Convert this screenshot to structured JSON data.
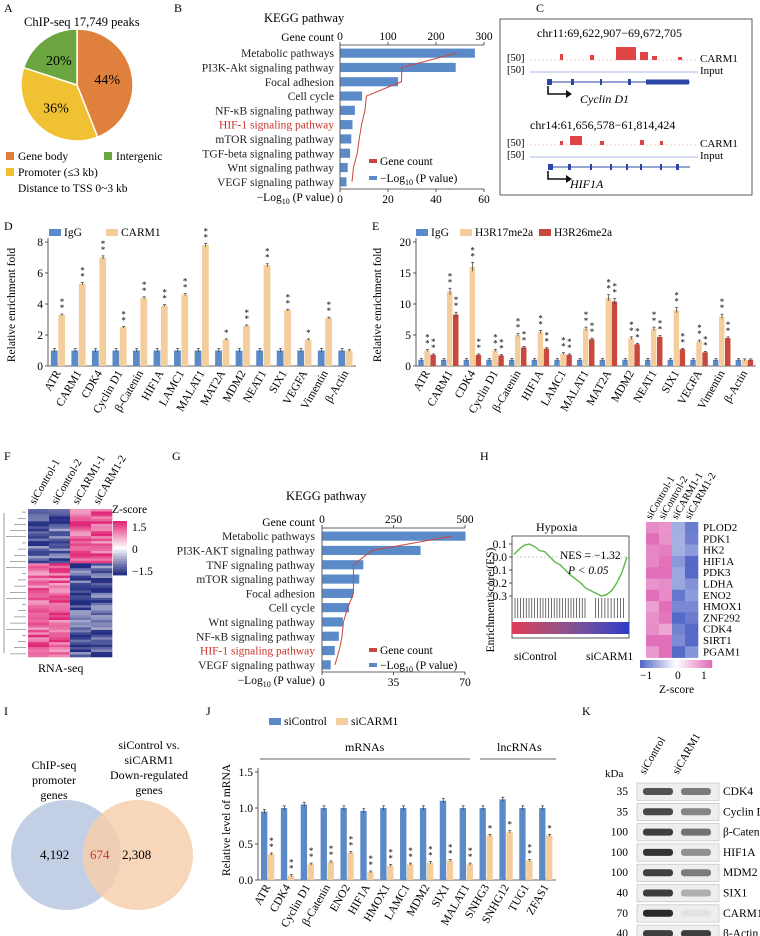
{
  "colors": {
    "body": "#e0803d",
    "intergenic": "#6ba53f",
    "promoter": "#f0c233",
    "blue": "#5b8ac8",
    "peach": "#f4cd9c",
    "red": "#c9483d",
    "title_red": "#c9352c",
    "venn_blue": "#c3cfe5",
    "venn_peach": "#f6cfae"
  },
  "panels": {
    "A": "A",
    "B": "B",
    "C": "C",
    "D": "D",
    "E": "E",
    "F": "F",
    "G": "G",
    "H": "H",
    "I": "I",
    "J": "J",
    "K": "K"
  },
  "panel_a": {
    "title": "ChIP-seq 17,749 peaks",
    "slices": [
      {
        "label": "44%",
        "value": 44,
        "color": "#e0803d"
      },
      {
        "label": "36%",
        "value": 36,
        "color": "#f0c233"
      },
      {
        "label": "20%",
        "value": 20,
        "color": "#6ba53f"
      }
    ],
    "legend": [
      "Gene body",
      "Intergenic",
      "Promoter (≤3 kb)",
      "Distance to TSS 0~3 kb"
    ]
  },
  "panel_b": {
    "title": "KEGG pathway",
    "top_axis_label": "Gene count",
    "top_ticks": [
      "0",
      "100",
      "200",
      "300"
    ],
    "bottom_ticks": [
      "0",
      "20",
      "40",
      "60"
    ],
    "bottom_axis_label": "−Log",
    "bottom_axis_sub": "10",
    "bottom_axis_rest": " (P value)",
    "legend_gene": "Gene count",
    "legend_p": "−Log",
    "legend_p_sub": "10",
    "legend_p_rest": " (P value)"
  },
  "panel_c": {
    "loc1": "chr11:69,622,907−69,672,705",
    "loc2": "chr14:61,656,578−61,814,424",
    "scale": "[50]",
    "track1": "CARM1",
    "track2": "Input",
    "gene1": "Cyclin D1",
    "gene2": "HIF1A"
  },
  "panel_d": {
    "legend": [
      "IgG",
      "CARM1"
    ],
    "ylabel": "Relative enrichment fold",
    "yticks": [
      "0",
      "2",
      "4",
      "6",
      "8"
    ],
    "stars": [
      "**",
      "**",
      "**",
      "**",
      "**",
      "**",
      "**",
      "**",
      "*",
      "**",
      "**",
      "**",
      "*",
      "**",
      ""
    ]
  },
  "panel_e": {
    "legend": [
      "IgG",
      "H3R17me2a",
      "H3R26me2a"
    ],
    "ylabel": "Relative enrichment fold",
    "yticks": [
      "0",
      "5",
      "10",
      "15",
      "20"
    ]
  },
  "panel_f": {
    "cols": [
      "siControl-1",
      "siControl-2",
      "siCARM1-1",
      "siCARM1-2"
    ],
    "zlabel": "Z-score",
    "zticks": [
      "1.5",
      "0",
      "−1.5"
    ],
    "caption": "RNA-seq"
  },
  "panel_g": {
    "title": "KEGG pathway",
    "top_axis_label": "Gene count",
    "top_ticks": [
      "0",
      "250",
      "500"
    ],
    "bottom_ticks": [
      "0",
      "35",
      "70"
    ],
    "bottom_axis_label": "−Log",
    "bottom_axis_sub": "10",
    "bottom_axis_rest": " (P value)",
    "legend_gene": "Gene count",
    "legend_p": "−Log",
    "legend_p_sub": "10",
    "legend_p_rest": " (P value)"
  },
  "panel_h": {
    "title": "Hypoxia",
    "nes": "NES = −1.32",
    "pval": "P < 0.05",
    "ylabel": "Enrichment score (ES)",
    "yticks": [
      "0.1",
      "0.0",
      "−0.1",
      "−0.2",
      "−0.3"
    ],
    "xleft": "siControl",
    "xright": "siCARM1",
    "cols": [
      "siControl-1",
      "siControl-2",
      "siCARM1-1",
      "siCARM1-2"
    ],
    "genes": [
      "PLOD2",
      "PDK1",
      "HK2",
      "HIF1A",
      "PDK3",
      "LDHA",
      "ENO2",
      "HMOX1",
      "ZNF292",
      "CDK4",
      "SIRT1",
      "PGAM1"
    ],
    "zticks": [
      "−1",
      "0",
      "1"
    ],
    "zlabel": "Z-score"
  },
  "panel_i": {
    "left_title": [
      "ChIP-seq",
      "promoter",
      "genes"
    ],
    "right_title": [
      "siControl vs.",
      "siCARM1",
      "Down-regulated",
      "genes"
    ],
    "left_n": "4,192",
    "overlap_n": "674",
    "right_n": "2,308"
  },
  "panel_j": {
    "legend": [
      "siControl",
      "siCARM1"
    ],
    "ylabel": "Relative level of mRNA",
    "yticks": [
      "0.0",
      "0.5",
      "1.0",
      "1.5"
    ],
    "group1": "mRNAs",
    "group2": "lncRNAs"
  },
  "panel_k": {
    "cols": [
      "siControl",
      "siCARM1"
    ],
    "unit": "kDa",
    "rows": [
      {
        "kda": "35",
        "name": "CDK4"
      },
      {
        "kda": "35",
        "name": "Cyclin  D1"
      },
      {
        "kda": "100",
        "name": "β-Catenin"
      },
      {
        "kda": "100",
        "name": "HIF1A"
      },
      {
        "kda": "100",
        "name": "MDM2"
      },
      {
        "kda": "40",
        "name": "SIX1"
      },
      {
        "kda": "70",
        "name": "CARM1"
      },
      {
        "kda": "40",
        "name": "β-Actin"
      }
    ]
  },
  "chart_data": [
    {
      "type": "pie",
      "title": "ChIP-seq 17,749 peaks",
      "categories": [
        "Gene body",
        "Promoter (≤3 kb)",
        "Intergenic"
      ],
      "values": [
        44,
        36,
        20
      ]
    },
    {
      "type": "bar",
      "id": "B",
      "title": "KEGG pathway",
      "categories": [
        "Metabolic pathways",
        "PI3K-Akt signaling pathway",
        "Focal adhesion",
        "Cell cycle",
        "NF-κB signaling pathway",
        "HIF-1 signaling pathway",
        "mTOR signaling pathway",
        "TGF-beta signaling pathway",
        "Wnt signaling pathway",
        "VEGF signaling pathway"
      ],
      "highlight": "HIF-1 signaling pathway",
      "series": [
        {
          "name": "Gene count",
          "values": [
            243,
            129,
            128,
            55,
            52,
            45,
            40,
            36,
            28,
            25
          ]
        },
        {
          "name": "−Log10 (P value)",
          "values": [
            56,
            48,
            24,
            9,
            6,
            5,
            4.5,
            4,
            3,
            2.5
          ]
        }
      ],
      "xlim_top": [
        0,
        300
      ],
      "xlim_bottom": [
        0,
        60
      ]
    },
    {
      "type": "bar",
      "id": "D",
      "ylabel": "Relative enrichment fold",
      "ylim": [
        0,
        8
      ],
      "categories": [
        "ATR",
        "CARM1",
        "CDK4",
        "Cyclin D1",
        "β-Catenin",
        "HIF1A",
        "LAMC1",
        "MALAT1",
        "MAT2A",
        "MDM2",
        "NEAT1",
        "SIX1",
        "VEGFA",
        "Vimentin",
        "β-Actin"
      ],
      "series": [
        {
          "name": "IgG",
          "values": [
            1,
            1,
            1,
            1,
            1,
            1,
            1,
            1,
            1,
            1,
            1,
            1,
            1,
            1,
            1
          ]
        },
        {
          "name": "CARM1",
          "values": [
            3.3,
            5.3,
            7.0,
            2.5,
            4.4,
            3.9,
            4.6,
            7.8,
            1.7,
            2.6,
            6.5,
            3.6,
            1.7,
            3.1,
            1.0
          ]
        }
      ]
    },
    {
      "type": "bar",
      "id": "E",
      "ylabel": "Relative enrichment fold",
      "ylim": [
        0,
        20
      ],
      "categories": [
        "ATR",
        "CARM1",
        "CDK4",
        "Cyclin D1",
        "β-Catenin",
        "HIF1A",
        "LAMC1",
        "MALAT1",
        "MAT2A",
        "MDM2",
        "NEAT1",
        "SIX1",
        "VEGFA",
        "Vimentin",
        "β-Actin"
      ],
      "series": [
        {
          "name": "IgG",
          "values": [
            1,
            1,
            1,
            1,
            1,
            1,
            1,
            1,
            1,
            1,
            1,
            1,
            1,
            1,
            1
          ]
        },
        {
          "name": "H3R17me2a",
          "values": [
            2.5,
            12,
            16,
            2.5,
            5,
            5.5,
            2,
            6,
            11,
            4.5,
            6,
            9,
            4,
            8,
            1
          ]
        },
        {
          "name": "H3R26me2a",
          "values": [
            1.8,
            8.3,
            1.8,
            1.7,
            3,
            2.8,
            1.8,
            4.3,
            10.4,
            3.5,
            4.7,
            2.7,
            2.2,
            4.5,
            1
          ]
        }
      ]
    },
    {
      "type": "bar",
      "id": "G",
      "title": "KEGG pathway",
      "categories": [
        "Metabolic pathways",
        "PI3K-AKT signaling pathway",
        "TNF signaling pathway",
        "mTOR signaling pathway",
        "Focal adhesion",
        "Cell cycle",
        "Wnt signaling pathway",
        "NF-κB signaling pathway",
        "HIF-1 signaling pathway",
        "VEGF signaling pathway"
      ],
      "highlight": "HIF-1 signaling pathway",
      "series": [
        {
          "name": "Gene count",
          "values": [
            455,
            175,
            110,
            110,
            110,
            90,
            75,
            70,
            60,
            45
          ]
        },
        {
          "name": "−Log10 (P value)",
          "values": [
            70,
            48,
            20,
            18,
            15,
            13,
            10,
            8,
            6,
            4
          ]
        }
      ],
      "xlim_top": [
        0,
        500
      ],
      "xlim_bottom": [
        0,
        70
      ]
    },
    {
      "type": "bar",
      "id": "J",
      "ylabel": "Relative level of mRNA",
      "ylim": [
        0,
        1.5
      ],
      "categories": [
        "ATR",
        "CDK4",
        "Cyclin D1",
        "β-Catenin",
        "ENO2",
        "HIF1A",
        "HMOX1",
        "LAMC1",
        "MDM2",
        "SIX1",
        "MALAT1",
        "SNHG3",
        "SNHG12",
        "TUG1",
        "ZFAS1"
      ],
      "series": [
        {
          "name": "siControl",
          "values": [
            0.95,
            1.0,
            1.05,
            1.0,
            1.0,
            0.96,
            1.0,
            1.0,
            1.0,
            1.1,
            1.0,
            1.0,
            1.12,
            1.0,
            1.0
          ]
        },
        {
          "name": "siCARM1",
          "values": [
            0.36,
            0.06,
            0.22,
            0.25,
            0.38,
            0.11,
            0.2,
            0.22,
            0.24,
            0.27,
            0.22,
            0.62,
            0.67,
            0.27,
            0.62
          ]
        }
      ]
    }
  ]
}
